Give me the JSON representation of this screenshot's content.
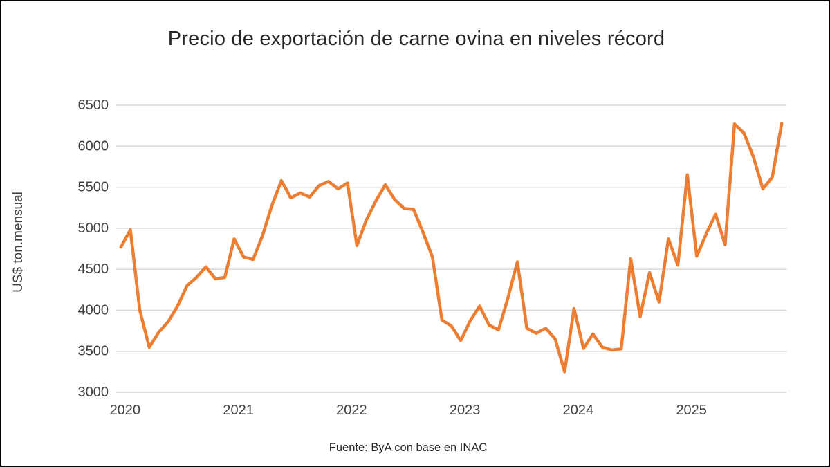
{
  "title": "Precio de exportación de carne ovina en niveles récord",
  "y_axis_title": "US$ ton.mensual",
  "source": "Fuente: ByA con base en INAC",
  "colors": {
    "line": "#ED7D31",
    "grid": "#D9D9D9",
    "title_text": "#262626",
    "tick_text": "#3f3f3f",
    "border": "#000000"
  },
  "chart_data": {
    "type": "line",
    "title": "Precio de exportación de carne ovina en niveles récord",
    "xlabel": "",
    "ylabel": "US$ ton.mensual",
    "source": "Fuente: ByA con base en INAC",
    "ylim": [
      3000,
      6500
    ],
    "y_ticks": [
      3000,
      3500,
      4000,
      4500,
      5000,
      5500,
      6000,
      6500
    ],
    "x_tick_labels": [
      "2020",
      "2021",
      "2022",
      "2023",
      "2024",
      "2025"
    ],
    "grid": true,
    "legend": false,
    "x_frequency": "monthly",
    "categories": [
      "2020-01",
      "2020-02",
      "2020-03",
      "2020-04",
      "2020-05",
      "2020-06",
      "2020-07",
      "2020-08",
      "2020-09",
      "2020-10",
      "2020-11",
      "2020-12",
      "2021-01",
      "2021-02",
      "2021-03",
      "2021-04",
      "2021-05",
      "2021-06",
      "2021-07",
      "2021-08",
      "2021-09",
      "2021-10",
      "2021-11",
      "2021-12",
      "2022-01",
      "2022-02",
      "2022-03",
      "2022-04",
      "2022-05",
      "2022-06",
      "2022-07",
      "2022-08",
      "2022-09",
      "2022-10",
      "2022-11",
      "2022-12",
      "2023-01",
      "2023-02",
      "2023-03",
      "2023-04",
      "2023-05",
      "2023-06",
      "2023-07",
      "2023-08",
      "2023-09",
      "2023-10",
      "2023-11",
      "2023-12",
      "2024-01",
      "2024-02",
      "2024-03",
      "2024-04",
      "2024-05",
      "2024-06",
      "2024-07",
      "2024-08",
      "2024-09",
      "2024-10",
      "2024-11",
      "2024-12",
      "2025-01",
      "2025-02",
      "2025-03",
      "2025-04",
      "2025-05",
      "2025-06",
      "2025-07",
      "2025-08",
      "2025-09",
      "2025-10",
      "2025-11"
    ],
    "series": [
      {
        "name": "Precio de exportación de carne ovina (US$/ton, mensual)",
        "color": "#ED7D31",
        "values": [
          4770,
          4980,
          4000,
          3550,
          3730,
          3860,
          4050,
          4300,
          4400,
          4530,
          4385,
          4400,
          4870,
          4650,
          4620,
          4910,
          5280,
          5580,
          5370,
          5430,
          5380,
          5520,
          5570,
          5480,
          5550,
          4790,
          5100,
          5330,
          5530,
          5350,
          5240,
          5230,
          4950,
          4650,
          3880,
          3810,
          3630,
          3870,
          4050,
          3820,
          3760,
          4150,
          4590,
          3780,
          3720,
          3780,
          3650,
          3250,
          4020,
          3535,
          3710,
          3550,
          3515,
          3530,
          4630,
          3920,
          4460,
          4100,
          4870,
          4550,
          5650,
          4660,
          4930,
          5170,
          4800,
          6270,
          6160,
          5870,
          5480,
          5620,
          6280
        ]
      }
    ]
  }
}
